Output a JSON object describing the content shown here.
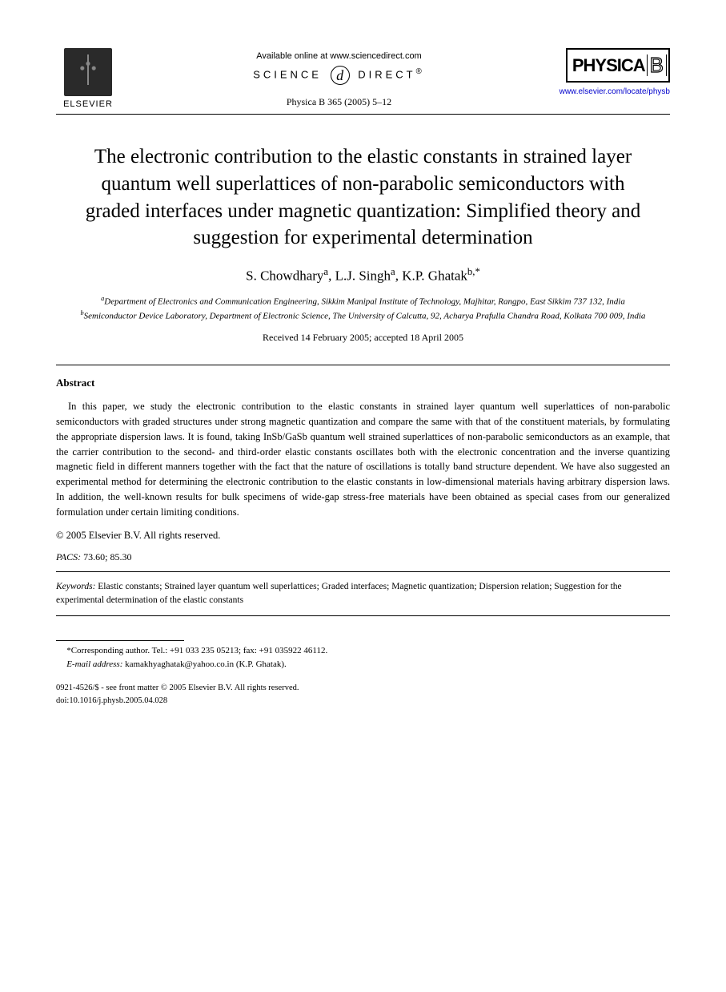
{
  "header": {
    "elsevier": "ELSEVIER",
    "available_online": "Available online at www.sciencedirect.com",
    "science": "SCIENCE",
    "direct": "DIRECT",
    "sd_glyph": "d",
    "journal_ref": "Physica B 365 (2005) 5–12",
    "physica_word": "PHYSICA",
    "physica_letter": "B",
    "journal_link": "www.elsevier.com/locate/physb"
  },
  "title": "The electronic contribution to the elastic constants in strained layer quantum well superlattices of non-parabolic semiconductors with graded interfaces under magnetic quantization: Simplified theory and suggestion for experimental determination",
  "authors_html": "S. Chowdhary<sup>a</sup>, L.J. Singh<sup>a</sup>, K.P. Ghatak<sup>b,*</sup>",
  "affiliations": {
    "a": "Department of Electronics and Communication Engineering, Sikkim Manipal Institute of Technology, Majhitar, Rangpo, East Sikkim 737 132, India",
    "b": "Semiconductor Device Laboratory, Department of Electronic Science, The University of Calcutta, 92, Acharya Prafulla Chandra Road, Kolkata 700 009, India"
  },
  "dates": "Received 14 February 2005; accepted 18 April 2005",
  "abstract_label": "Abstract",
  "abstract": "In this paper, we study the electronic contribution to the elastic constants in strained layer quantum well superlattices of non-parabolic semiconductors with graded structures under strong magnetic quantization and compare the same with that of the constituent materials, by formulating the appropriate dispersion laws. It is found, taking InSb/GaSb quantum well strained superlattices of non-parabolic semiconductors as an example, that the carrier contribution to the second- and third-order elastic constants oscillates both with the electronic concentration and the inverse quantizing magnetic field in different manners together with the fact that the nature of oscillations is totally band structure dependent. We have also suggested an experimental method for determining the electronic contribution to the elastic constants in low-dimensional materials having arbitrary dispersion laws. In addition, the well-known results for bulk specimens of wide-gap stress-free materials have been obtained as special cases from our generalized formulation under certain limiting conditions.",
  "copyright": "© 2005 Elsevier B.V. All rights reserved.",
  "pacs_label": "PACS:",
  "pacs": "73.60; 85.30",
  "keywords_label": "Keywords:",
  "keywords": "Elastic constants; Strained layer quantum well superlattices; Graded interfaces; Magnetic quantization; Dispersion relation; Suggestion for the experimental determination of the elastic constants",
  "footnote": {
    "corresponding": "*Corresponding author. Tel.: +91 033 235 05213; fax: +91 035922 46112.",
    "email_label": "E-mail address:",
    "email": "kamakhyaghatak@yahoo.co.in (K.P. Ghatak)."
  },
  "doi": {
    "front_matter": "0921-4526/$ - see front matter © 2005 Elsevier B.V. All rights reserved.",
    "doi": "doi:10.1016/j.physb.2005.04.028"
  },
  "colors": {
    "link": "#0000cc",
    "text": "#000000",
    "bg": "#ffffff"
  }
}
